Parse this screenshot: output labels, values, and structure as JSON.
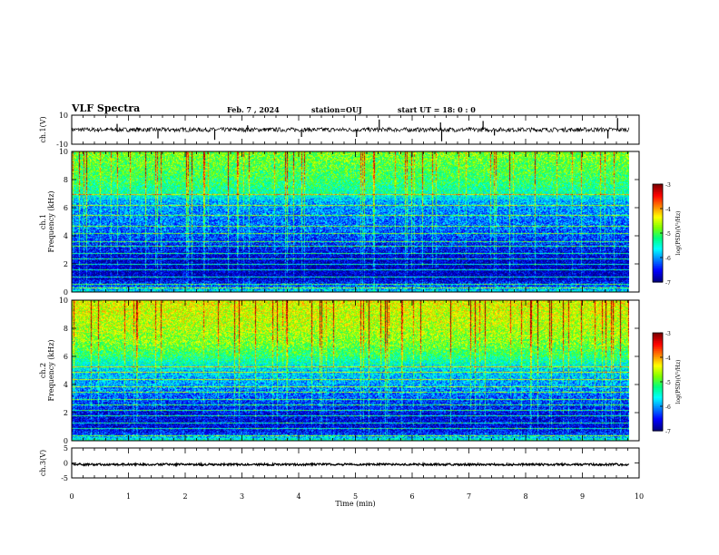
{
  "header": {
    "title": "VLF Spectra",
    "date": "Feb. 7 , 2024",
    "station": "station=OUJ",
    "start_time": "start UT =  18: 0  : 0"
  },
  "colors": {
    "colormap": [
      "#000088",
      "#0000ff",
      "#0080ff",
      "#00ffff",
      "#00ff80",
      "#80ff00",
      "#ffff00",
      "#ff8000",
      "#ff0000",
      "#800000"
    ],
    "trace": "#000000"
  },
  "chart_data": [
    {
      "type": "line",
      "name": "ch1-waveform",
      "ylabel": "ch.1(V)",
      "ylim": [
        -10,
        10
      ],
      "yticks": [
        "10",
        "-10"
      ],
      "baseline": 0,
      "noise_amplitude": 1.5,
      "spikes": [
        {
          "t": 0.8,
          "v": 4
        },
        {
          "t": 1.52,
          "v": -6
        },
        {
          "t": 2.52,
          "v": -7
        },
        {
          "t": 3.1,
          "v": 3
        },
        {
          "t": 4.05,
          "v": -5
        },
        {
          "t": 5.02,
          "v": -5
        },
        {
          "t": 5.42,
          "v": 7
        },
        {
          "t": 6.5,
          "v": 5
        },
        {
          "t": 6.52,
          "v": -8
        },
        {
          "t": 7.25,
          "v": 6
        },
        {
          "t": 7.45,
          "v": -4
        },
        {
          "t": 9.45,
          "v": -6
        },
        {
          "t": 9.62,
          "v": 8
        }
      ]
    },
    {
      "type": "heatmap",
      "name": "ch1-spectrogram",
      "ylabel": "ch.1\nFrequency (kHz)",
      "ylim": [
        0,
        10
      ],
      "yticks": [
        "0",
        "2",
        "4",
        "6",
        "8",
        "10"
      ],
      "colorbar": {
        "label": "log(PSD)(V²/Hz)",
        "range": [
          -7,
          -3
        ],
        "ticks": [
          "-3",
          "-4",
          "-5",
          "-6",
          "-7"
        ]
      },
      "level_profile": [
        {
          "f": 0.0,
          "v": -5.6
        },
        {
          "f": 0.5,
          "v": -6.3
        },
        {
          "f": 1.0,
          "v": -6.8
        },
        {
          "f": 2.0,
          "v": -6.8
        },
        {
          "f": 2.5,
          "v": -6.7
        },
        {
          "f": 3.5,
          "v": -6.4
        },
        {
          "f": 4.5,
          "v": -6.2
        },
        {
          "f": 5.5,
          "v": -6.1
        },
        {
          "f": 6.5,
          "v": -5.9
        },
        {
          "f": 7.0,
          "v": -5.4
        },
        {
          "f": 8.0,
          "v": -5.1
        },
        {
          "f": 10.0,
          "v": -4.8
        }
      ],
      "tones_khz": [
        0.3,
        0.6,
        1.1,
        1.6,
        2.0,
        2.4,
        2.8,
        3.3,
        3.6,
        4.2,
        4.7,
        5.5,
        6.2,
        7.0
      ]
    },
    {
      "type": "heatmap",
      "name": "ch2-spectrogram",
      "ylabel": "ch.2\nFrequency (kHz)",
      "ylim": [
        0,
        10
      ],
      "yticks": [
        "0",
        "2",
        "4",
        "6",
        "8",
        "10"
      ],
      "colorbar": {
        "label": "log(PSD)(V²/Hz)",
        "range": [
          -7,
          -3
        ],
        "ticks": [
          "-3",
          "-4",
          "-5",
          "-6",
          "-7"
        ]
      },
      "level_profile": [
        {
          "f": 0.0,
          "v": -5.3
        },
        {
          "f": 0.5,
          "v": -6.4
        },
        {
          "f": 1.0,
          "v": -6.7
        },
        {
          "f": 2.0,
          "v": -6.6
        },
        {
          "f": 3.0,
          "v": -6.3
        },
        {
          "f": 4.0,
          "v": -6.0
        },
        {
          "f": 5.0,
          "v": -5.8
        },
        {
          "f": 6.0,
          "v": -5.2
        },
        {
          "f": 7.0,
          "v": -4.8
        },
        {
          "f": 8.0,
          "v": -4.6
        },
        {
          "f": 10.0,
          "v": -4.4
        }
      ],
      "tones_khz": [
        0.4,
        0.9,
        1.3,
        1.8,
        2.2,
        2.6,
        3.0,
        3.5,
        3.9,
        4.4,
        4.9,
        5.3
      ]
    },
    {
      "type": "line",
      "name": "ch3-waveform",
      "ylabel": "ch.3(V)",
      "ylim": [
        -5,
        5
      ],
      "yticks": [
        "5",
        "0",
        "-5"
      ],
      "baseline": -0.5,
      "noise_amplitude": 0.35,
      "spikes": []
    }
  ],
  "time_axis": {
    "label": "Time (min)",
    "range": [
      0,
      10
    ],
    "ticks": [
      "0",
      "1",
      "2",
      "3",
      "4",
      "5",
      "6",
      "7",
      "8",
      "9",
      "10"
    ],
    "data_end": 9.83
  }
}
